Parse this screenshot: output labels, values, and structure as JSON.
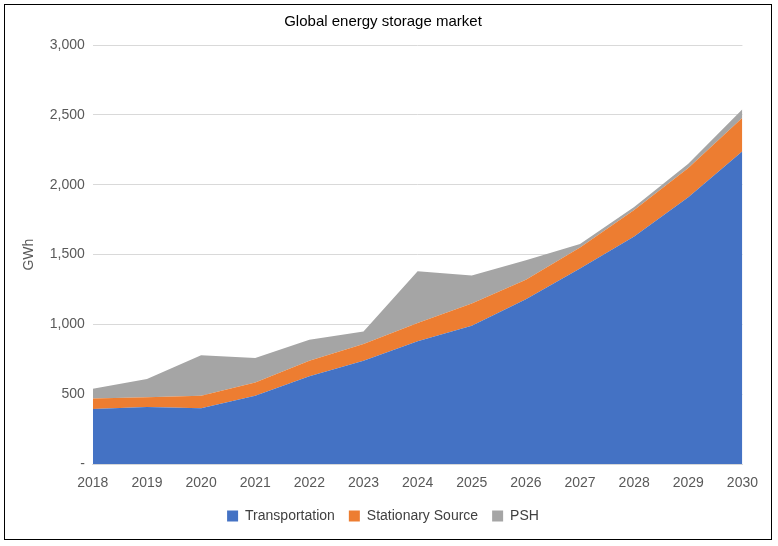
{
  "chart_data": {
    "type": "area",
    "title": "Global energy storage market",
    "y_label": "GWh",
    "categories": [
      "2018",
      "2019",
      "2020",
      "2021",
      "2022",
      "2023",
      "2024",
      "2025",
      "2026",
      "2027",
      "2028",
      "2029",
      "2030"
    ],
    "series": [
      {
        "name": "Transportation",
        "color": "#4472c4",
        "values": [
          395,
          410,
          400,
          490,
          630,
          740,
          880,
          990,
          1180,
          1400,
          1630,
          1910,
          2240
        ]
      },
      {
        "name": "Stationary Source",
        "color": "#ed7d31",
        "values": [
          75,
          70,
          90,
          95,
          110,
          120,
          130,
          160,
          140,
          150,
          190,
          210,
          240
        ]
      },
      {
        "name": "PSH",
        "color": "#a5a5a5",
        "values": [
          70,
          130,
          290,
          175,
          150,
          90,
          370,
          200,
          140,
          25,
          20,
          30,
          60
        ]
      }
    ],
    "stacked": true,
    "ylim": [
      0,
      3000
    ],
    "yticks": [
      {
        "value": 0,
        "label": "-"
      },
      500,
      {
        "value": 1000,
        "label": "1,000"
      },
      {
        "value": 1500,
        "label": "1,500"
      },
      {
        "value": 2000,
        "label": "2,000"
      },
      {
        "value": 2500,
        "label": "2,500"
      },
      {
        "value": 3000,
        "label": "3,000"
      }
    ],
    "grid": true,
    "legend": "bottom"
  }
}
